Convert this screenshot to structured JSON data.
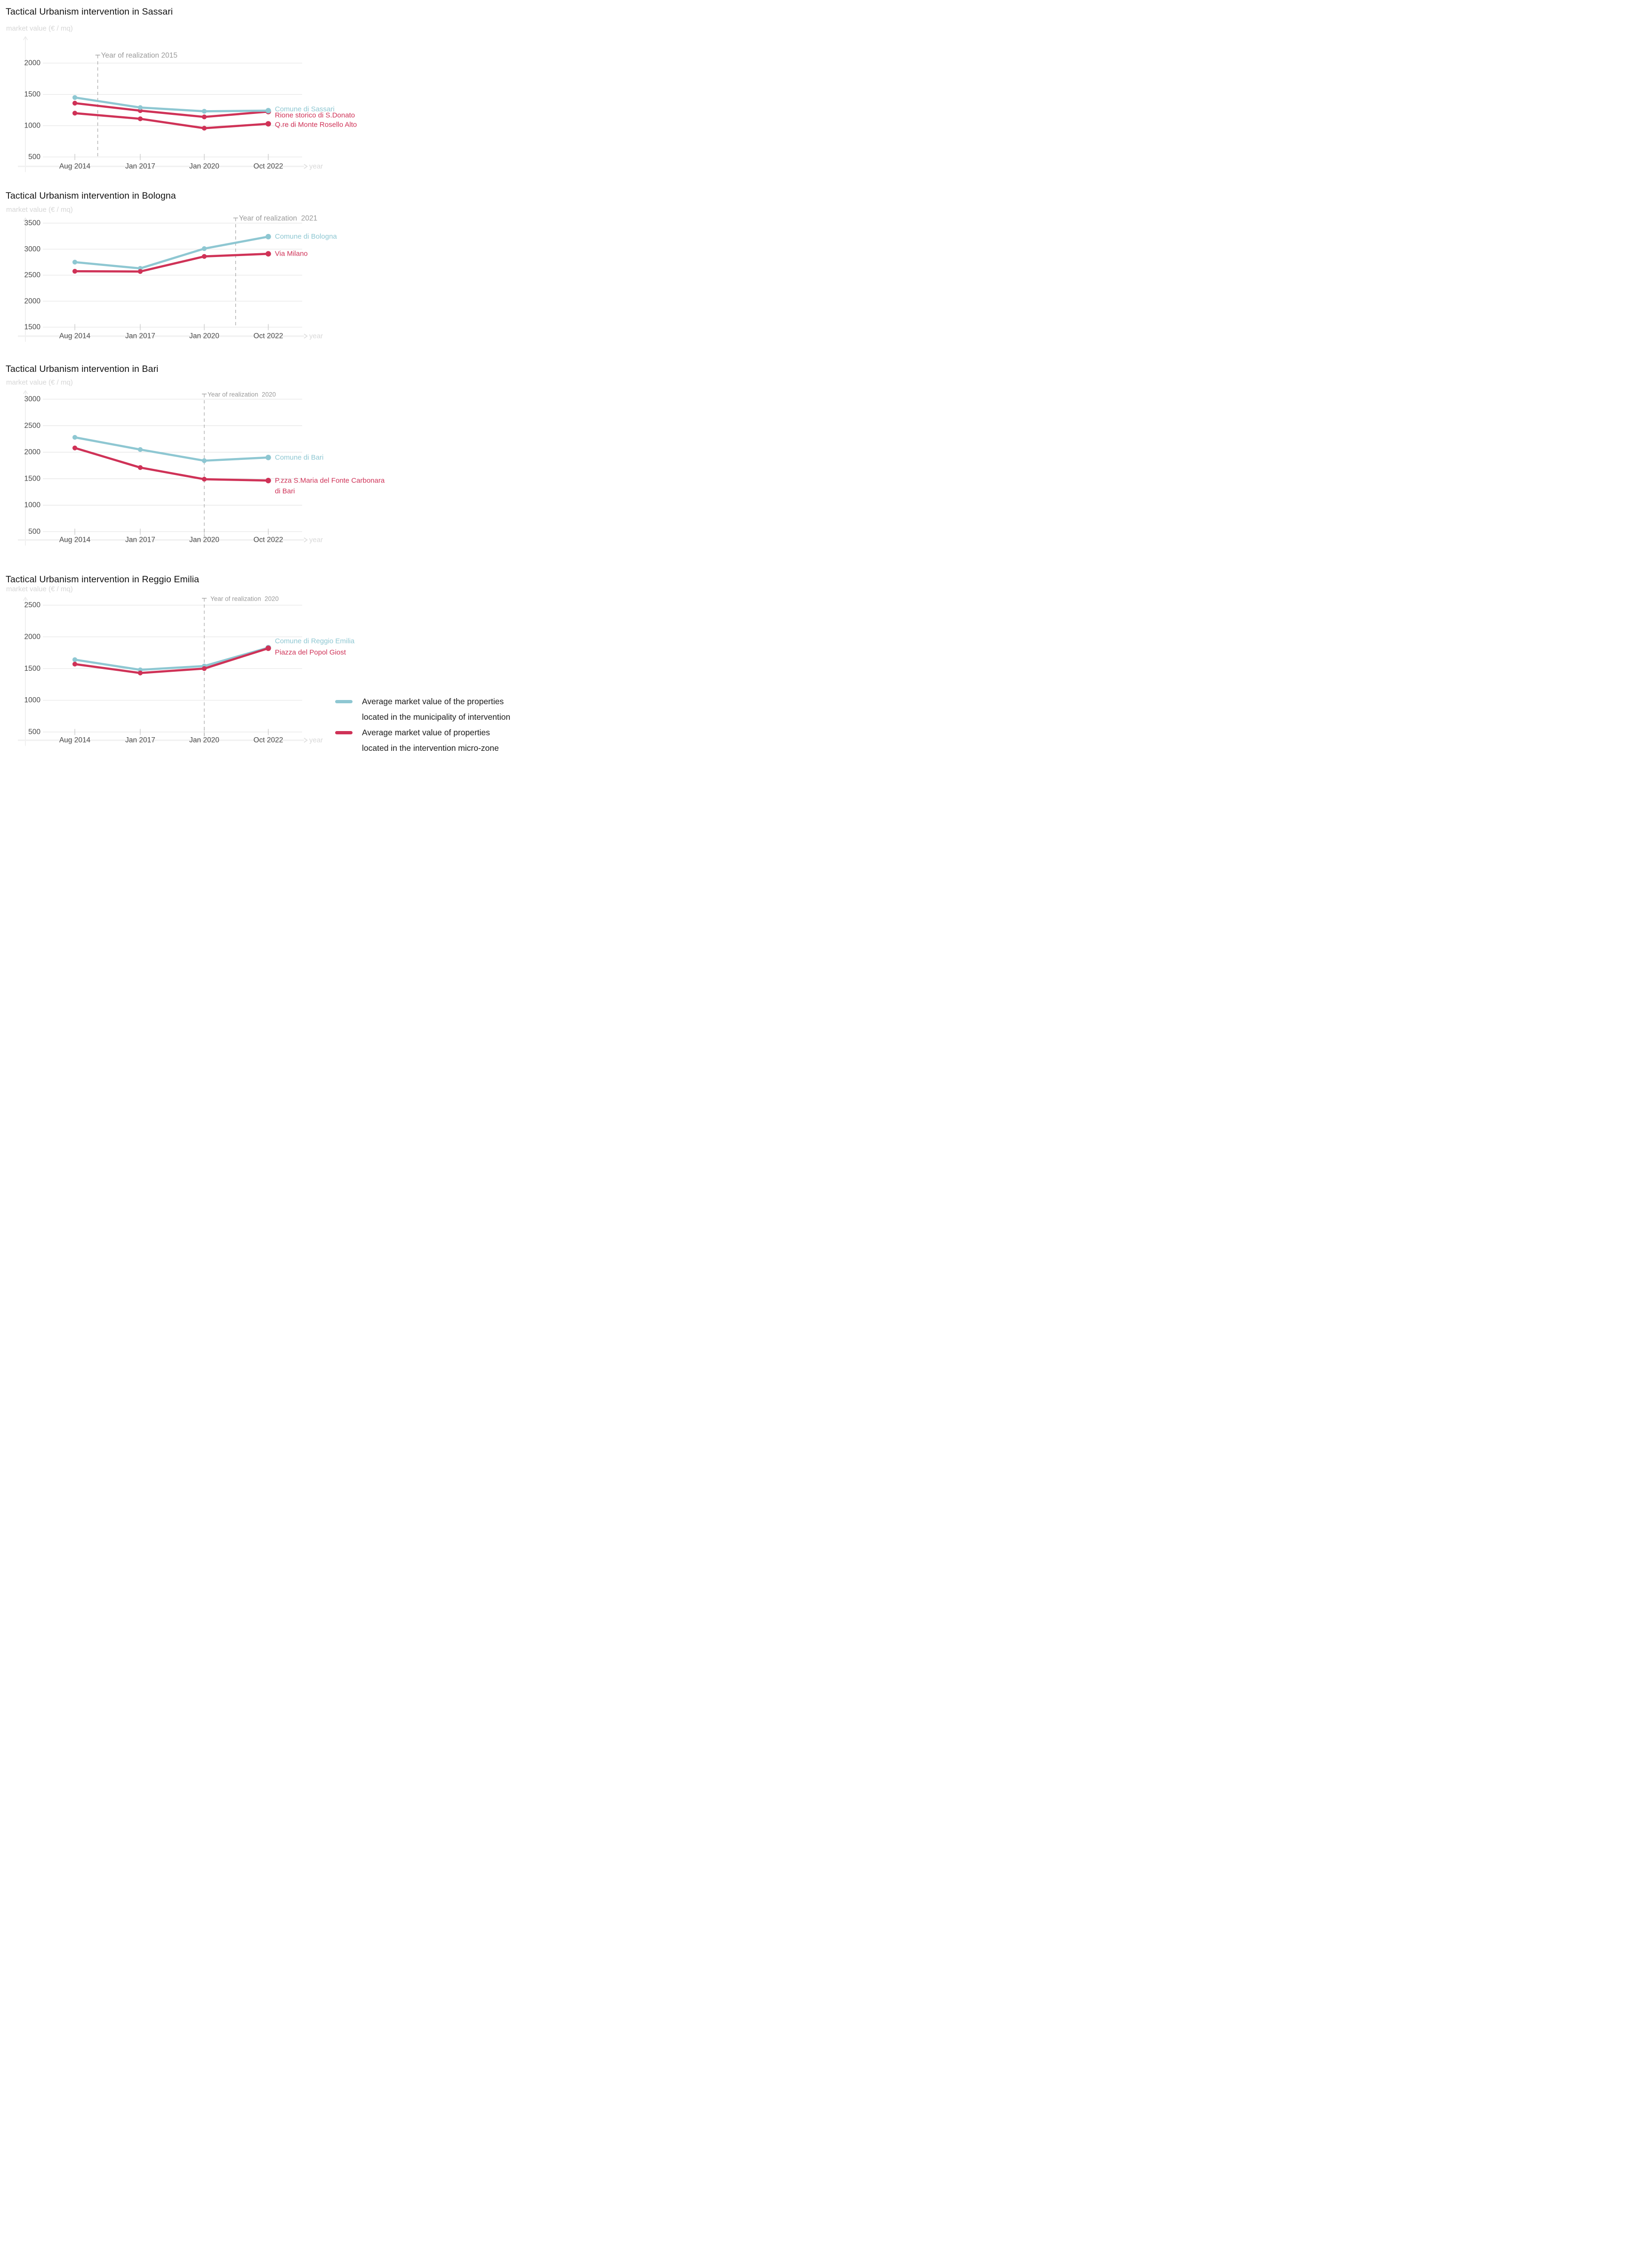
{
  "colors": {
    "municipality": "#8ec7d2",
    "microzone": "#cf3257"
  },
  "chart_data": [
    {
      "type": "line",
      "title": "Tactical Urbanism intervention in Sassari",
      "ylabel": "market value (€ / mq)",
      "xlabel": "year",
      "categories": [
        "Aug 2014",
        "Jan 2017",
        "Jan 2020",
        "Oct 2022"
      ],
      "yticks": [
        2000,
        1500,
        1000,
        500
      ],
      "ylim": [
        500,
        2000
      ],
      "grid": true,
      "realization": {
        "label": "Year of realization 2015",
        "year": "2015",
        "axis_position": 0.35
      },
      "series": [
        {
          "name": "Comune di Sassari",
          "color": "#8ec7d2",
          "values": [
            1450,
            1290,
            1230,
            1240
          ]
        },
        {
          "name": "Rione storico di S.Donato",
          "color": "#cf3257",
          "values": [
            1360,
            1240,
            1140,
            1225
          ]
        },
        {
          "name": "Q.re di Monte Rosello Alto",
          "color": "#cf3257",
          "values": [
            1200,
            1110,
            960,
            1030
          ]
        }
      ]
    },
    {
      "type": "line",
      "title": "Tactical Urbanism intervention in Bologna",
      "ylabel": "market value (€ / mq)",
      "xlabel": "year",
      "categories": [
        "Aug 2014",
        "Jan 2017",
        "Jan 2020",
        "Oct 2022"
      ],
      "yticks": [
        3500,
        3000,
        2500,
        2000,
        1500
      ],
      "ylim": [
        1500,
        3500
      ],
      "grid": true,
      "realization": {
        "label": "Year of realization  2021",
        "year": "2021",
        "axis_position": 2.49
      },
      "series": [
        {
          "name": "Comune di Bologna",
          "color": "#8ec7d2",
          "values": [
            2750,
            2630,
            3010,
            3240
          ]
        },
        {
          "name": "Via Milano",
          "color": "#cf3257",
          "values": [
            2575,
            2570,
            2860,
            2910
          ]
        }
      ]
    },
    {
      "type": "line",
      "title": "Tactical Urbanism intervention in Bari",
      "ylabel": "market value (€ / mq)",
      "xlabel": "year",
      "categories": [
        "Aug 2014",
        "Jan 2017",
        "Jan 2020",
        "Oct 2022"
      ],
      "yticks": [
        3000,
        2500,
        2000,
        1500,
        1000,
        500
      ],
      "ylim": [
        500,
        3000
      ],
      "grid": true,
      "realization": {
        "label": "Year of realization  2020",
        "year": "2020",
        "axis_position": 2.0
      },
      "series": [
        {
          "name": "Comune di Bari",
          "color": "#8ec7d2",
          "values": [
            2280,
            2050,
            1840,
            1900
          ]
        },
        {
          "name": "P.zza S.Maria del Fonte Carbonara di Bari",
          "color": "#cf3257",
          "label_lines": [
            "P.zza S.Maria del Fonte Carbonara",
            "di Bari"
          ],
          "values": [
            2080,
            1710,
            1490,
            1465
          ]
        }
      ]
    },
    {
      "type": "line",
      "title": "Tactical Urbanism intervention in Reggio Emilia",
      "ylabel": "market value (€ / mq)",
      "xlabel": "year",
      "categories": [
        "Aug 2014",
        "Jan 2017",
        "Jan 2020",
        "Oct 2022"
      ],
      "yticks": [
        2500,
        2000,
        1500,
        1000,
        500
      ],
      "ylim": [
        500,
        2500
      ],
      "grid": true,
      "realization": {
        "label": "Year of realization  2020",
        "year": "2020",
        "axis_position": 2.0
      },
      "series": [
        {
          "name": "Comune di Reggio Emilia",
          "color": "#8ec7d2",
          "values": [
            1640,
            1480,
            1540,
            1830
          ]
        },
        {
          "name": "Piazza del Popol Giost",
          "color": "#cf3257",
          "values": [
            1570,
            1430,
            1500,
            1820
          ]
        }
      ]
    }
  ],
  "legend": {
    "items": [
      {
        "color": "#8ec7d2",
        "lines": [
          "Average market value of the properties",
          "located in the municipality of intervention"
        ]
      },
      {
        "color": "#cf3257",
        "lines": [
          "Average market value of properties",
          "located in the intervention micro-zone"
        ]
      }
    ]
  }
}
